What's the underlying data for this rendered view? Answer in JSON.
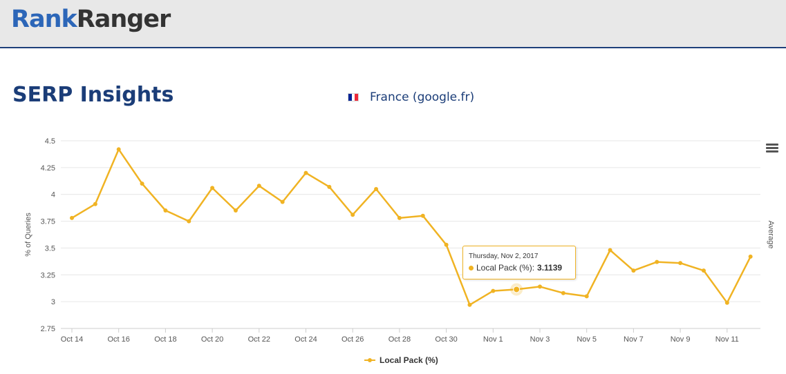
{
  "header": {
    "logo_part1": "Rank",
    "logo_part2": "Ranger"
  },
  "page": {
    "title": "SERP Insights",
    "country": "France (google.fr)"
  },
  "colors": {
    "brand_blue": "#2c66b8",
    "title_blue": "#1b3d78",
    "series": "#f0b323",
    "flag_blue": "#002395",
    "flag_red": "#ed2939"
  },
  "chart_data": {
    "type": "line",
    "title": "",
    "xlabel": "",
    "ylabel": "% of Queries",
    "y2label": "Average",
    "ylim": [
      2.75,
      4.5
    ],
    "yticks": [
      2.75,
      3,
      3.25,
      3.5,
      3.75,
      4,
      4.25,
      4.5
    ],
    "ytick_labels": [
      "2.75",
      "3",
      "3.25",
      "3.5",
      "3.75",
      "4",
      "4.25",
      "4.5"
    ],
    "x": [
      "Oct 14",
      "Oct 15",
      "Oct 16",
      "Oct 17",
      "Oct 18",
      "Oct 19",
      "Oct 20",
      "Oct 21",
      "Oct 22",
      "Oct 23",
      "Oct 24",
      "Oct 25",
      "Oct 26",
      "Oct 27",
      "Oct 28",
      "Oct 29",
      "Oct 30",
      "Oct 31",
      "Nov 1",
      "Nov 2",
      "Nov 3",
      "Nov 4",
      "Nov 5",
      "Nov 6",
      "Nov 7",
      "Nov 8",
      "Nov 9",
      "Nov 10",
      "Nov 11",
      "Nov 12"
    ],
    "xtick_labels": [
      "Oct 14",
      "Oct 16",
      "Oct 18",
      "Oct 20",
      "Oct 22",
      "Oct 24",
      "Oct 26",
      "Oct 28",
      "Oct 30",
      "Nov 1",
      "Nov 3",
      "Nov 5",
      "Nov 7",
      "Nov 9",
      "Nov 11"
    ],
    "series": [
      {
        "name": "Local Pack (%)",
        "values": [
          3.78,
          3.91,
          4.42,
          4.1,
          3.85,
          3.75,
          4.06,
          3.85,
          4.08,
          3.93,
          4.2,
          4.07,
          3.81,
          4.05,
          3.78,
          3.8,
          3.53,
          2.97,
          3.1,
          3.1139,
          3.14,
          3.08,
          3.05,
          3.48,
          3.29,
          3.37,
          3.36,
          3.29,
          2.99,
          3.42
        ]
      }
    ],
    "grid": true,
    "legend": "bottom-center",
    "tooltip": {
      "date": "Thursday, Nov 2, 2017",
      "label": "Local Pack (%):",
      "value": "3.1139"
    }
  }
}
